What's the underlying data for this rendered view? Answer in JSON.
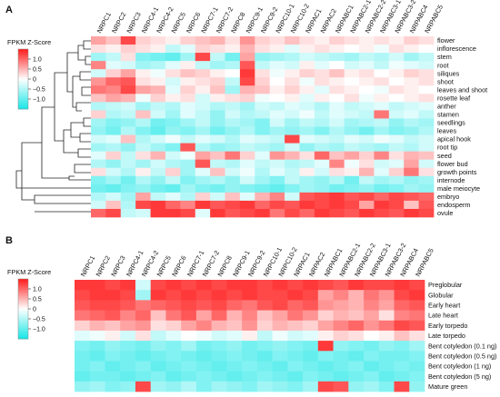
{
  "panel_a_label": "A",
  "panel_b_label": "B",
  "key_title": "FPKM Z-Score",
  "key_ticks": [
    "1.0",
    "0.5",
    "0",
    "−0.5",
    "−1.0"
  ],
  "colors": {
    "high": "#ff1a1a",
    "mid": "#ffffff",
    "low": "#17e6e6"
  },
  "chart_data": [
    {
      "type": "heatmap",
      "panel": "A",
      "value_range": [
        -1.5,
        1.5
      ],
      "columns": [
        "NRPC1",
        "NRPC2",
        "NRPC3",
        "NRPC4-1",
        "NRPC4-2",
        "NRPC5",
        "NRPC6",
        "NRPC7-1",
        "NRPC7-2",
        "NRPC8",
        "NRPC9-1",
        "NRPC9-2",
        "NRPC10-1",
        "NRPC10-2",
        "NRPAC1",
        "NRPAC2",
        "NRPABC1",
        "NRPABC2-1",
        "NRPABC2-2",
        "NRPABC3-1",
        "NRPABC3-2",
        "NRPABC4",
        "NRPABC5"
      ],
      "rows": [
        "flower",
        "inflorescence",
        "stem",
        "root",
        "siliques",
        "shoot",
        "leaves and shoot",
        "rosette leaf",
        "anther",
        "stamen",
        "seedlings",
        "leaves",
        "apical hook",
        "root tip",
        "seed",
        "flower bud",
        "growth points",
        "internode",
        "male meiocyte",
        "embryo",
        "endosperm",
        "ovule"
      ],
      "values": [
        [
          0.6,
          0.4,
          1.2,
          0.3,
          0.2,
          0.1,
          0.3,
          0.4,
          0.5,
          0.2,
          0.7,
          0.3,
          0.2,
          0.4,
          0.2,
          0.1,
          0.3,
          0.2,
          0.1,
          0.2,
          0.1,
          0.3,
          0.2
        ],
        [
          0.2,
          0.1,
          0.3,
          0.2,
          0.1,
          -0.4,
          -0.2,
          0.3,
          0.2,
          0.1,
          0.5,
          0.2,
          0.1,
          -0.2,
          0.1,
          0.2,
          0.1,
          0.0,
          0.1,
          -0.1,
          0.2,
          0.1,
          0.0
        ],
        [
          -0.6,
          -0.4,
          0.2,
          -0.8,
          -0.9,
          -1.0,
          -0.6,
          1.2,
          -0.4,
          -0.9,
          0.6,
          -0.7,
          -0.6,
          -0.5,
          -0.3,
          -0.4,
          -0.5,
          -0.6,
          -0.4,
          -0.5,
          -0.3,
          -0.6,
          -0.4
        ],
        [
          0.8,
          -0.2,
          -0.3,
          -0.6,
          -0.5,
          -0.2,
          0.1,
          -0.4,
          -0.6,
          -0.5,
          1.1,
          -0.4,
          -0.2,
          -0.3,
          0.1,
          -0.2,
          0.0,
          -0.3,
          -0.2,
          -0.4,
          -0.1,
          -0.2,
          -0.3
        ],
        [
          -0.3,
          0.3,
          0.6,
          0.1,
          -0.1,
          0.2,
          0.4,
          0.3,
          0.1,
          0.0,
          1.3,
          0.2,
          -0.1,
          0.1,
          0.3,
          0.2,
          0.4,
          0.1,
          0.2,
          0.0,
          0.1,
          0.3,
          0.2
        ],
        [
          0.7,
          1.0,
          1.1,
          0.2,
          0.1,
          -0.3,
          0.1,
          0.2,
          0.3,
          -0.4,
          1.2,
          0.3,
          0.0,
          0.2,
          -0.1,
          0.2,
          0.1,
          0.0,
          0.1,
          0.2,
          0.0,
          0.1,
          0.2
        ],
        [
          0.9,
          0.8,
          1.2,
          0.6,
          0.5,
          -0.2,
          0.3,
          0.1,
          0.4,
          -0.6,
          0.5,
          0.4,
          0.1,
          0.3,
          0.1,
          -0.2,
          0.2,
          0.1,
          0.0,
          -0.1,
          0.2,
          0.1,
          0.0
        ],
        [
          0.4,
          0.6,
          0.5,
          -0.1,
          0.3,
          0.1,
          0.2,
          -0.3,
          0.1,
          0.2,
          0.3,
          -0.1,
          0.0,
          0.1,
          -0.2,
          0.1,
          0.0,
          0.2,
          -0.1,
          0.1,
          0.0,
          0.1,
          0.2
        ],
        [
          -0.5,
          -0.4,
          -0.3,
          -0.6,
          -0.4,
          -0.5,
          -0.2,
          -0.3,
          -0.5,
          -0.4,
          -0.6,
          -0.3,
          -0.4,
          -0.2,
          -0.3,
          -0.5,
          -0.2,
          -0.4,
          -0.3,
          -0.2,
          -0.4,
          -0.3,
          -0.2
        ],
        [
          0.3,
          -0.5,
          -0.4,
          0.4,
          -0.3,
          -0.6,
          -0.2,
          -0.4,
          -0.7,
          -0.3,
          -0.5,
          -0.4,
          -0.2,
          -0.3,
          -0.1,
          -0.4,
          -0.2,
          -0.3,
          -0.4,
          0.9,
          -0.3,
          -0.2,
          -0.4
        ],
        [
          -0.6,
          -0.8,
          -0.7,
          -0.5,
          -0.9,
          -0.8,
          -0.6,
          -0.4,
          -0.7,
          -0.5,
          -0.6,
          -0.8,
          -0.3,
          -0.6,
          -0.4,
          -0.5,
          -0.3,
          -0.6,
          -0.5,
          -0.4,
          -0.7,
          -0.5,
          -0.6
        ],
        [
          -0.7,
          -0.9,
          -0.5,
          -0.8,
          -1.0,
          -0.7,
          -0.8,
          -0.6,
          -0.9,
          -0.7,
          -0.5,
          -0.8,
          -0.6,
          -0.7,
          -0.6,
          -0.8,
          -0.5,
          -0.7,
          -0.9,
          -0.6,
          -0.8,
          -0.7,
          -0.5
        ],
        [
          -0.3,
          -0.2,
          0.4,
          -0.5,
          -0.3,
          -0.1,
          -0.4,
          -0.2,
          -0.3,
          -0.5,
          -0.2,
          -0.3,
          -0.4,
          1.2,
          -0.2,
          -0.3,
          -0.4,
          -0.2,
          -0.3,
          -0.1,
          -0.2,
          -0.4,
          -0.3
        ],
        [
          -0.6,
          -0.5,
          -0.7,
          -0.4,
          -0.6,
          -0.8,
          1.1,
          -0.5,
          -0.7,
          -0.6,
          -0.4,
          -0.5,
          -0.6,
          -0.3,
          -0.7,
          -0.5,
          -0.6,
          -0.4,
          -0.5,
          -0.6,
          -0.4,
          -0.5,
          -0.3
        ],
        [
          -0.2,
          0.3,
          -0.4,
          0.2,
          0.5,
          -0.3,
          -0.1,
          0.6,
          0.4,
          0.9,
          0.3,
          -0.2,
          0.7,
          0.5,
          0.2,
          1.0,
          0.4,
          0.6,
          0.3,
          0.8,
          0.2,
          0.5,
          0.4
        ],
        [
          -0.5,
          -0.7,
          -0.4,
          -0.6,
          -0.3,
          -0.5,
          -0.6,
          1.1,
          -0.4,
          -0.5,
          -0.2,
          -0.4,
          -0.3,
          -0.5,
          -0.4,
          -0.2,
          0.8,
          -0.1,
          0.2,
          -0.3,
          -0.2,
          0.6,
          -0.3
        ],
        [
          0.2,
          -0.3,
          -0.5,
          0.1,
          -0.4,
          0.3,
          -0.6,
          -0.2,
          0.4,
          -0.3,
          -0.1,
          -0.5,
          -0.2,
          -0.4,
          0.1,
          -0.3,
          0.2,
          0.1,
          0.5,
          -0.2,
          0.3,
          0.9,
          0.2
        ],
        [
          -0.8,
          -0.6,
          -0.9,
          -0.5,
          -0.7,
          -0.4,
          -0.8,
          -0.6,
          -0.5,
          -0.7,
          -0.3,
          -0.6,
          -0.8,
          -0.4,
          -0.6,
          -0.7,
          -0.5,
          -0.9,
          -0.4,
          -0.6,
          -0.5,
          -0.7,
          -0.6
        ],
        [
          -0.9,
          -1.0,
          -0.8,
          -0.7,
          -0.9,
          -1.0,
          -0.6,
          -0.8,
          -0.9,
          -0.7,
          -0.8,
          -0.9,
          -1.0,
          -0.8,
          -0.6,
          -0.7,
          -0.9,
          -0.8,
          -0.7,
          -0.9,
          -0.8,
          -0.6,
          -0.7
        ],
        [
          -0.5,
          -0.3,
          -0.6,
          0.6,
          -0.4,
          -0.2,
          -0.5,
          0.3,
          -0.3,
          0.4,
          -0.2,
          0.5,
          0.8,
          -0.3,
          1.1,
          1.2,
          1.3,
          1.1,
          1.2,
          1.0,
          1.2,
          1.1,
          1.0
        ],
        [
          -0.3,
          0.4,
          -0.5,
          1.2,
          1.3,
          1.0,
          0.8,
          1.3,
          1.1,
          1.2,
          1.3,
          1.0,
          1.2,
          1.1,
          1.3,
          1.2,
          1.3,
          1.2,
          0.6,
          1.3,
          1.2,
          0.4,
          1.1
        ],
        [
          1.0,
          1.2,
          -0.4,
          -0.3,
          1.3,
          1.3,
          1.2,
          -0.2,
          1.3,
          1.1,
          1.2,
          1.3,
          0.9,
          1.2,
          1.0,
          1.3,
          1.2,
          1.1,
          1.3,
          1.2,
          1.1,
          1.3,
          1.2
        ]
      ]
    },
    {
      "type": "heatmap",
      "panel": "B",
      "value_range": [
        -1.5,
        1.5
      ],
      "columns": [
        "NRPC1",
        "NRPC2",
        "NRPC3",
        "NRPC4-1",
        "NRPC4-2",
        "NRPC5",
        "NRPC6",
        "NRPC7-1",
        "NRPC7-2",
        "NRPC8",
        "NRPC9-1",
        "NRPC9-2",
        "NRPC10-1",
        "NRPC10-2",
        "NRPAC1",
        "NRPAC2",
        "NRPABC1",
        "NRPABC2-1",
        "NRPABC2-2",
        "NRPABC3-1",
        "NRPABC3-2",
        "NRPABC4",
        "NRPABC5"
      ],
      "rows": [
        "Preglobular",
        "Globular",
        "Early heart",
        "Late heart",
        "Early torpedo",
        "Late torpedo",
        "Bent cotyledon (0.1 ng)",
        "Bent cotyledon (0.5 ng)",
        "Bent cotyledon (1 ng)",
        "Bent cotyledon (5 ng)",
        "Mature green"
      ],
      "values": [
        [
          1.3,
          1.3,
          1.2,
          1.3,
          -0.3,
          1.2,
          1.3,
          1.2,
          1.3,
          1.2,
          1.3,
          1.3,
          1.2,
          1.3,
          1.2,
          1.3,
          1.2,
          1.1,
          1.3,
          1.2,
          1.2,
          1.3,
          1.2
        ],
        [
          1.2,
          1.3,
          1.3,
          1.2,
          -0.6,
          1.3,
          1.2,
          1.3,
          1.2,
          1.3,
          1.2,
          1.3,
          1.2,
          1.2,
          1.3,
          1.2,
          0.6,
          0.8,
          0.5,
          0.9,
          0.7,
          1.2,
          1.3
        ],
        [
          1.1,
          1.2,
          1.2,
          1.1,
          0.9,
          1.0,
          1.1,
          1.2,
          1.1,
          1.2,
          1.0,
          0.9,
          1.1,
          1.2,
          1.0,
          1.1,
          0.7,
          0.6,
          0.5,
          0.8,
          0.6,
          1.0,
          1.1
        ],
        [
          0.9,
          1.0,
          1.1,
          0.8,
          1.0,
          0.4,
          0.9,
          1.1,
          0.6,
          1.0,
          0.5,
          0.8,
          0.4,
          0.6,
          0.9,
          0.7,
          0.3,
          0.5,
          0.4,
          0.6,
          0.2,
          0.8,
          0.9
        ],
        [
          0.3,
          0.5,
          0.4,
          0.6,
          0.7,
          0.2,
          0.3,
          0.6,
          0.8,
          0.5,
          0.4,
          0.7,
          0.3,
          0.5,
          0.4,
          0.3,
          0.6,
          0.8,
          1.0,
          0.7,
          0.9,
          1.2,
          1.1
        ],
        [
          -0.2,
          -0.1,
          0.1,
          -0.3,
          0.2,
          -0.4,
          -0.2,
          0.0,
          -0.1,
          -0.3,
          -0.2,
          0.1,
          -0.4,
          -0.1,
          -0.3,
          -0.2,
          0.1,
          0.3,
          0.2,
          0.0,
          0.1,
          0.4,
          0.2
        ],
        [
          -0.8,
          -0.9,
          -0.7,
          -0.8,
          -0.9,
          -0.7,
          -0.8,
          -0.6,
          -0.9,
          -0.8,
          -0.7,
          -0.9,
          -0.8,
          -0.7,
          -0.8,
          -0.9,
          1.3,
          -0.7,
          -0.8,
          -0.9,
          -0.7,
          -0.8,
          -0.6
        ],
        [
          -0.9,
          -1.0,
          -0.8,
          -0.9,
          -1.0,
          -0.9,
          -0.8,
          -0.9,
          -1.0,
          -0.9,
          -0.8,
          -0.9,
          -1.0,
          -0.8,
          -0.9,
          -1.0,
          -0.8,
          -0.9,
          -1.0,
          -0.8,
          -0.9,
          -0.9,
          -0.8
        ],
        [
          -0.9,
          -0.8,
          -1.0,
          -0.9,
          -0.8,
          -1.0,
          -0.9,
          -0.8,
          -0.9,
          -1.0,
          -0.9,
          -0.8,
          -0.9,
          -1.0,
          -0.8,
          -0.9,
          -1.0,
          -0.9,
          -0.8,
          -1.0,
          -0.9,
          -0.8,
          -0.9
        ],
        [
          -1.0,
          -0.9,
          -0.9,
          -1.0,
          -0.9,
          -0.8,
          -1.0,
          -0.9,
          -0.8,
          -0.9,
          -1.0,
          -0.9,
          -0.8,
          -0.9,
          -1.0,
          -0.8,
          -0.9,
          -1.0,
          -0.9,
          -0.8,
          -1.0,
          -0.9,
          -0.8
        ],
        [
          -0.7,
          -0.6,
          -0.8,
          -0.7,
          1.2,
          -0.6,
          -0.7,
          -0.5,
          -0.8,
          -0.6,
          -0.7,
          -0.8,
          -0.6,
          -0.7,
          -0.8,
          -0.6,
          1.2,
          1.1,
          -0.7,
          -0.6,
          -0.8,
          1.2,
          -0.7
        ]
      ]
    }
  ]
}
